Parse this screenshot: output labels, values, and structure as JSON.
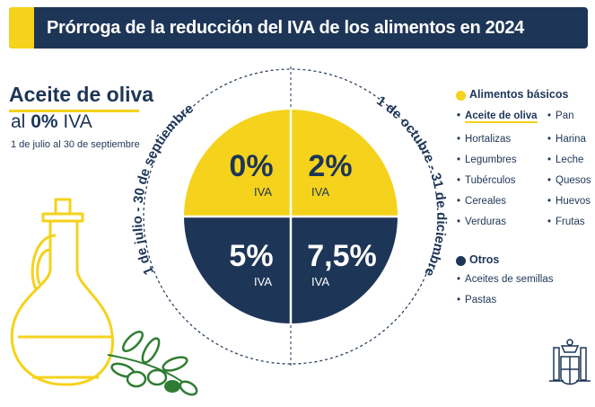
{
  "header": {
    "title": "Prórroga de la reducción del IVA de los alimentos en 2024"
  },
  "product": {
    "name": "Aceite de oliva",
    "rate_prefix": "al",
    "rate_value": "0%",
    "rate_suffix": "IVA",
    "dates": "1 de julio al 30 de septiembre"
  },
  "circle": {
    "left_arc_label": "1 de julio - 30 de septiembre",
    "right_arc_label": "1 de octubre - 31 de diciembre",
    "quadrants": {
      "top_left": {
        "value": "0%",
        "unit": "IVA"
      },
      "top_right": {
        "value": "2%",
        "unit": "IVA"
      },
      "bottom_left": {
        "value": "5%",
        "unit": "IVA"
      },
      "bottom_right": {
        "value": "7,5%",
        "unit": "IVA"
      }
    }
  },
  "legend": {
    "basic": {
      "title": "Alimentos básicos",
      "col1": [
        "Aceite de oliva",
        "Hortalizas",
        "Legumbres",
        "Tubérculos",
        "Cereales",
        "Verduras"
      ],
      "col2": [
        "Pan",
        "Harina",
        "Leche",
        "Quesos",
        "Huevos",
        "Frutas"
      ]
    },
    "others": {
      "title": "Otros",
      "items": [
        "Aceites de semillas",
        "Pastas"
      ]
    }
  },
  "colors": {
    "navy": "#1d3557",
    "yellow": "#f5d21b",
    "leaf": "#2e7d32"
  },
  "icons": [
    "olive-oil-jar-illustration",
    "olive-branch-illustration",
    "spain-coat-of-arms"
  ]
}
